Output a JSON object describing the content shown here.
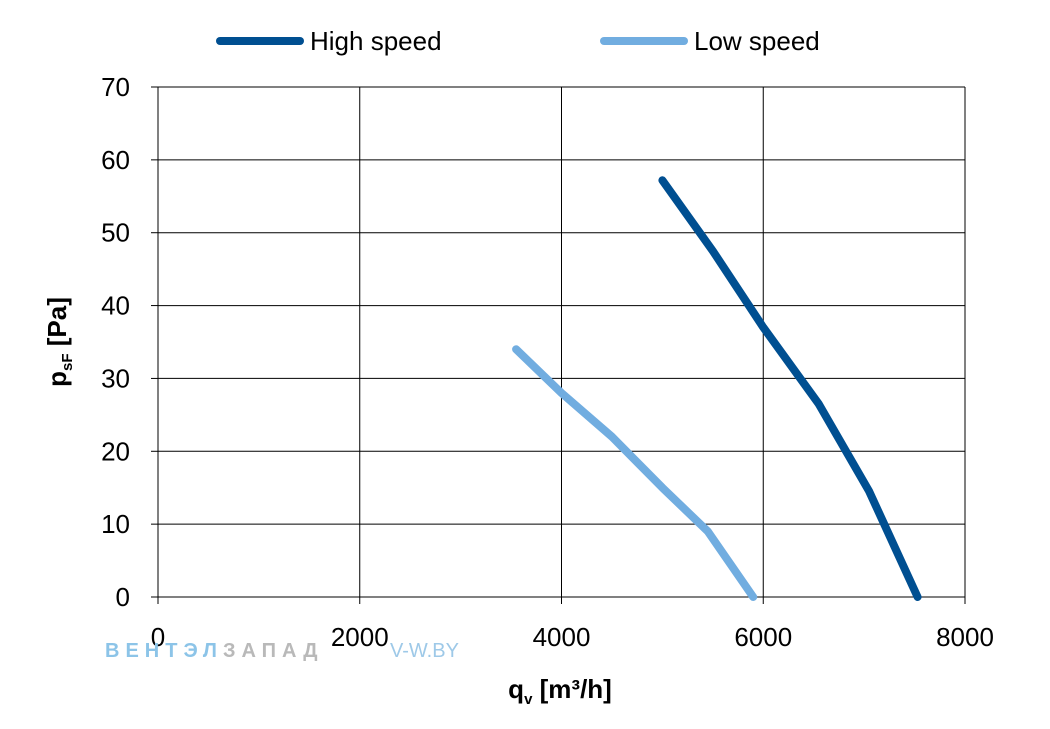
{
  "chart_data": {
    "type": "line",
    "xlabel": "q",
    "xlabel_sub": "v",
    "xlabel_unit": " [m³/h]",
    "ylabel": "p",
    "ylabel_sub": "sF",
    "ylabel_unit": " [Pa]",
    "xlim": [
      0,
      8000
    ],
    "ylim": [
      0,
      70
    ],
    "xticks": [
      0,
      2000,
      4000,
      6000,
      8000
    ],
    "yticks": [
      0,
      10,
      20,
      30,
      40,
      50,
      60,
      70
    ],
    "grid": true,
    "legend_position": "top",
    "series": [
      {
        "name": "High speed",
        "color": "#004f91",
        "x": [
          5000,
          5500,
          6000,
          6550,
          7050,
          7530
        ],
        "y": [
          57.2,
          47.5,
          37.0,
          26.5,
          14.5,
          0
        ]
      },
      {
        "name": "Low speed",
        "color": "#71ade0",
        "x": [
          3550,
          4000,
          4500,
          5000,
          5450,
          5900
        ],
        "y": [
          34.0,
          28.0,
          22.0,
          15.0,
          9.0,
          0
        ]
      }
    ]
  },
  "watermark": {
    "part1": "ВЕНТЭЛ",
    "part2": "ЗАПАД",
    "site": "V-W.BY",
    "color1": "#8cc4e8",
    "color2": "#b9b9b9"
  }
}
